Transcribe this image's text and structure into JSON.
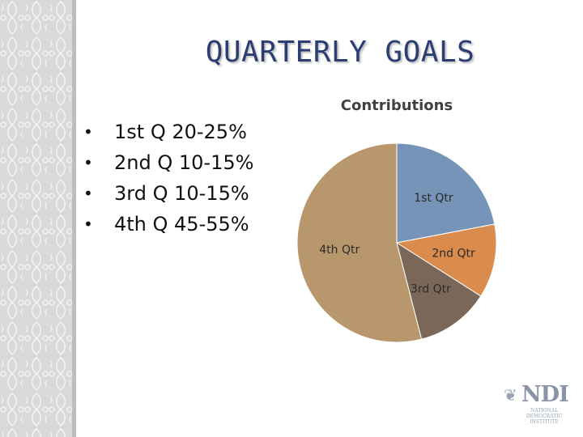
{
  "slide": {
    "title": "QUARTERLY GOALS",
    "bullets": [
      "1st Q 20-25%",
      "2nd Q 10-15%",
      "3rd Q 10-15%",
      "4th Q 45-55%"
    ]
  },
  "chart_data": {
    "type": "pie",
    "title": "Contributions",
    "categories": [
      "1st Qtr",
      "2nd Qtr",
      "3rd Qtr",
      "4th Qtr"
    ],
    "values": [
      22,
      12,
      12,
      54
    ],
    "colors": [
      "#7594b7",
      "#d98c4e",
      "#7a6758",
      "#b8976c"
    ]
  },
  "logo": {
    "name": "NDI",
    "subtitle": "NATIONAL\nDEMOCRATIC\nINSTITUTE"
  }
}
